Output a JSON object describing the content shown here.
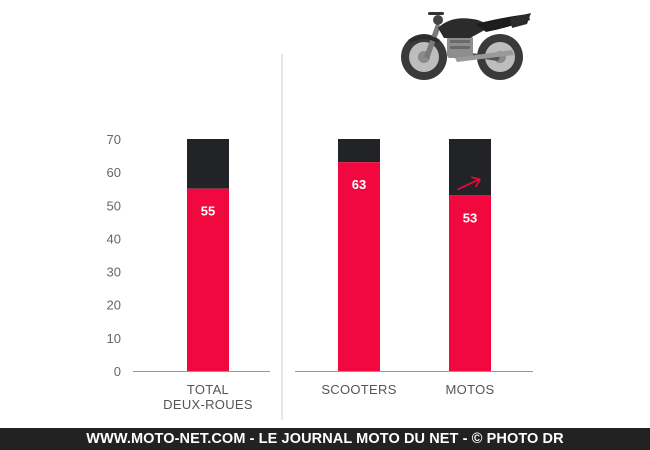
{
  "colors": {
    "value_bar": "#F0083E",
    "remainder_bar": "#222327",
    "axis": "#999999",
    "divider": "#cccccc",
    "arrow": "#F0083E"
  },
  "footer": {
    "text": "WWW.MOTO-NET.COM - LE JOURNAL MOTO DU NET - © PHOTO DR"
  },
  "motorcycle_icon": "motorcycle-icon",
  "chart_data": {
    "type": "bar",
    "stacked": true,
    "ylim": [
      0,
      70
    ],
    "yticks": [
      0,
      10,
      20,
      30,
      40,
      50,
      60,
      70
    ],
    "total": 70,
    "groups": [
      {
        "categories": [
          {
            "label": [
              "TOTAL",
              "DEUX-ROUES"
            ],
            "value": 55,
            "value_label": "55",
            "trend_arrow": false
          }
        ]
      },
      {
        "categories": [
          {
            "label": [
              "SCOOTERS"
            ],
            "value": 63,
            "value_label": "63",
            "trend_arrow": false
          },
          {
            "label": [
              "MOTOS"
            ],
            "value": 53,
            "value_label": "53",
            "trend_arrow": true
          }
        ]
      }
    ]
  }
}
